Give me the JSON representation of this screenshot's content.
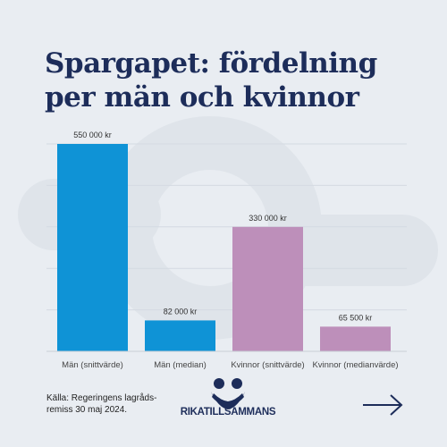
{
  "post": {
    "title_lines": [
      "Spargapet: fördelning",
      "per män och kvinnor"
    ],
    "source_text": "Källa: Regeringens lagråds-\nremiss 30 maj 2024.",
    "brand": "RIKATILLSAMMANS"
  },
  "colors": {
    "background": "#e9edf2",
    "title": "#1d2d5a",
    "men": "#0f93d6",
    "women": "#bd8fba",
    "grid": "#d4dae2"
  },
  "chart_data": {
    "type": "bar",
    "title": "",
    "xlabel": "",
    "ylabel": "",
    "ylim": [
      0,
      550000
    ],
    "grid": true,
    "categories": [
      "Män (snittvärde)",
      "Män (median)",
      "Kvinnor (snittvärde)",
      "Kvinnor (medianvärde)"
    ],
    "values": [
      550000,
      82000,
      330000,
      65500
    ],
    "value_labels": [
      "550 000 kr",
      "82 000 kr",
      "330 000 kr",
      "65 500 kr"
    ],
    "bar_colors": [
      "#0f93d6",
      "#0f93d6",
      "#bd8fba",
      "#bd8fba"
    ]
  }
}
